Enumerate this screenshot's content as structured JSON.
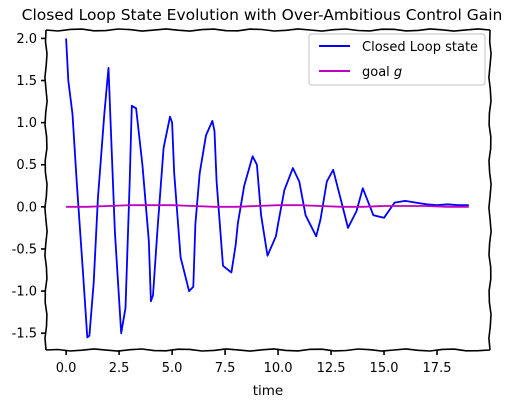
{
  "chart_data": {
    "type": "line",
    "title": "Closed Loop State Evolution with Over-Ambitious Control Gain",
    "xlabel": "time",
    "ylabel": "",
    "xlim": [
      -0.95,
      20
    ],
    "ylim": [
      -1.7,
      2.1
    ],
    "xticks": [
      0,
      2.5,
      5,
      7.5,
      10,
      12.5,
      15,
      17.5
    ],
    "xtick_labels": [
      "0.0",
      "2.5",
      "5.0",
      "7.5",
      "10.0",
      "12.5",
      "15.0",
      "17.5"
    ],
    "yticks": [
      -1.5,
      -1.0,
      -0.5,
      0.0,
      0.5,
      1.0,
      1.5,
      2.0
    ],
    "ytick_labels": [
      "-1.5",
      "-1.0",
      "-0.5",
      "0.0",
      "0.5",
      "1.0",
      "1.5",
      "2.0"
    ],
    "grid": false,
    "legend_position": "top-right",
    "style": "xkcd",
    "series": [
      {
        "name": "Closed Loop state",
        "color": "#0000ff",
        "x": [
          0.0,
          0.1,
          0.3,
          0.5,
          0.8,
          1.0,
          1.1,
          1.3,
          1.5,
          1.8,
          2.0,
          2.1,
          2.3,
          2.6,
          2.8,
          3.0,
          3.1,
          3.3,
          3.6,
          3.9,
          4.0,
          4.1,
          4.3,
          4.6,
          4.9,
          5.0,
          5.1,
          5.4,
          5.8,
          6.0,
          6.1,
          6.3,
          6.6,
          6.9,
          7.0,
          7.1,
          7.4,
          7.8,
          8.0,
          8.1,
          8.4,
          8.8,
          9.0,
          9.2,
          9.5,
          9.9,
          10.0,
          10.3,
          10.7,
          11.0,
          11.3,
          11.8,
          12.0,
          12.3,
          12.6,
          13.0,
          13.3,
          13.7,
          14.0,
          14.5,
          15.0,
          15.5,
          16.0,
          16.5,
          17.0,
          17.5,
          18.0,
          18.5,
          19.0
        ],
        "y": [
          2.0,
          1.5,
          1.1,
          0.3,
          -0.8,
          -1.55,
          -1.53,
          -0.9,
          0.1,
          1.1,
          1.65,
          1.0,
          -0.3,
          -1.5,
          -1.2,
          0.3,
          1.2,
          1.17,
          0.5,
          -0.4,
          -1.12,
          -1.05,
          -0.3,
          0.7,
          1.07,
          1.0,
          0.4,
          -0.6,
          -1.0,
          -0.95,
          -0.2,
          0.4,
          0.85,
          1.02,
          0.9,
          0.3,
          -0.7,
          -0.78,
          -0.45,
          -0.2,
          0.25,
          0.6,
          0.5,
          -0.1,
          -0.58,
          -0.35,
          -0.2,
          0.2,
          0.46,
          0.3,
          -0.1,
          -0.35,
          -0.15,
          0.3,
          0.44,
          0.05,
          -0.25,
          -0.05,
          0.22,
          -0.1,
          -0.13,
          0.05,
          0.07,
          0.05,
          0.03,
          0.02,
          0.03,
          0.02,
          0.02
        ]
      },
      {
        "name": "goal g",
        "color": "#bf00bf",
        "x": [
          0.0,
          1.0,
          2.0,
          3.0,
          4.0,
          5.0,
          6.0,
          7.0,
          8.0,
          9.0,
          10.0,
          11.0,
          12.0,
          13.0,
          14.0,
          15.0,
          16.0,
          17.0,
          18.0,
          19.0
        ],
        "y": [
          0.0,
          0.0,
          0.01,
          0.02,
          0.02,
          0.02,
          0.01,
          0.0,
          0.0,
          0.01,
          0.02,
          0.02,
          0.01,
          0.0,
          0.0,
          0.01,
          0.01,
          0.01,
          0.0,
          0.0
        ]
      }
    ],
    "legend": {
      "entry1": "Closed Loop state",
      "entry2_prefix": "goal ",
      "entry2_symbol": "g"
    }
  }
}
